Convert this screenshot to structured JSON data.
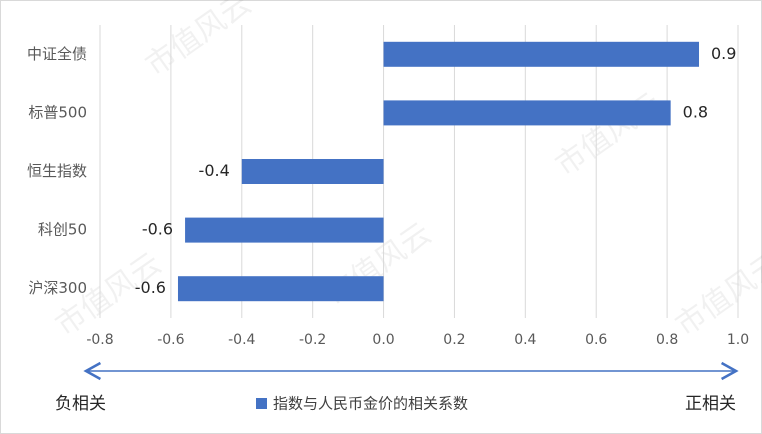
{
  "chart_data": {
    "type": "bar",
    "orientation": "horizontal",
    "watermark": "市值风云",
    "categories": [
      "中证全债",
      "标普500",
      "恒生指数",
      "科创50",
      "沪深300"
    ],
    "series": [
      {
        "name": "指数与人民币金价的相关系数",
        "color": "#4472c4",
        "values": [
          0.89,
          0.81,
          -0.4,
          -0.56,
          -0.58
        ],
        "value_labels": [
          "0.9",
          "0.8",
          "-0.4",
          "-0.6",
          "-0.6"
        ]
      }
    ],
    "xlim": [
      -0.8,
      1.0
    ],
    "xticks": [
      -0.8,
      -0.6,
      -0.4,
      -0.2,
      {
        "value": 0,
        "label": "0.0"
      },
      0.2,
      0.4,
      0.6,
      0.8,
      {
        "value": 1,
        "label": "1.0"
      }
    ],
    "grid": true,
    "left_annotation": "负相关",
    "right_annotation": "正相关"
  }
}
